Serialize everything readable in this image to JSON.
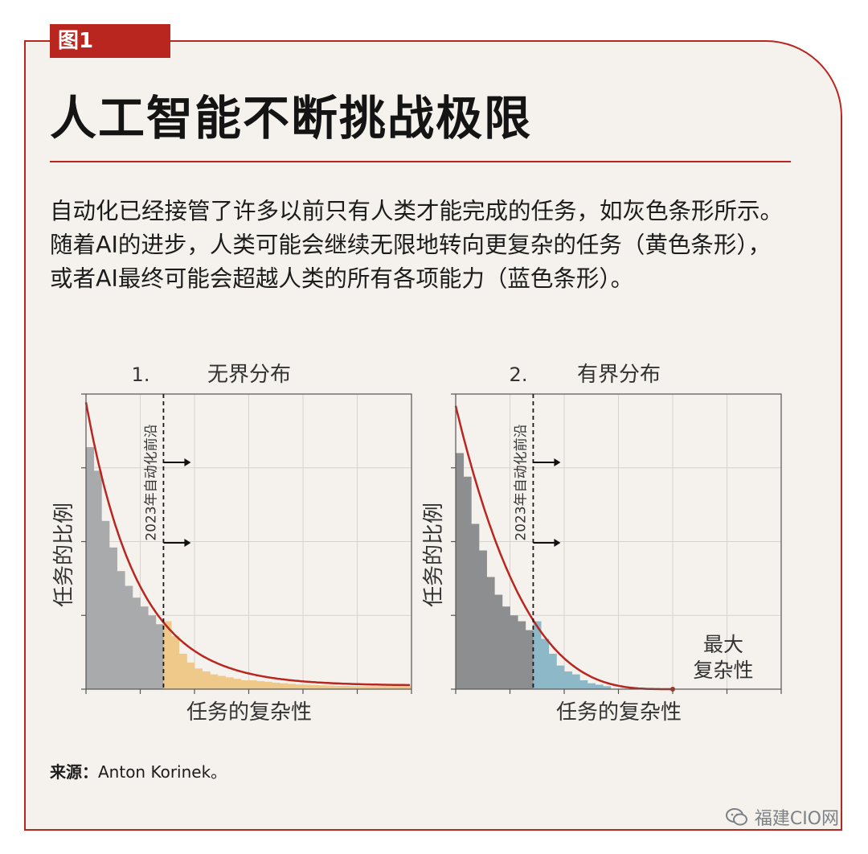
{
  "figure_tag": "图1",
  "title": "人工智能不断挑战极限",
  "description": "自动化已经接管了许多以前只有人类才能完成的任务，如灰色条形所示。随着AI的进步，人类可能会继续无限地转向更复杂的任务（黄色条形），或者AI最终可能会超越人类的所有各项能力（蓝色条形）。",
  "source_label": "来源：",
  "source_text": "Anton Korinek。",
  "watermark": "福建CIO网",
  "colors": {
    "accent": "#b8261f",
    "background": "#f5f1ec",
    "gray_bar": "#a8aaab",
    "gray_bar_dark": "#8c8e90",
    "yellow_bar": "#efc98a",
    "blue_bar": "#8cb8c8",
    "curve": "#b8261f"
  },
  "chart_data": [
    {
      "type": "bar",
      "panel_number": "1.",
      "title": "无界分布",
      "xlabel": "任务的复杂性",
      "ylabel": "任务的比例",
      "frontier_label": "2023年自动化前沿",
      "frontier_x": 5,
      "xlim": [
        0,
        21
      ],
      "ylim": [
        0,
        1
      ],
      "grid": true,
      "series": [
        {
          "color": "gray",
          "values": [
            0.82,
            0.74,
            0.57,
            0.48,
            0.4,
            0.35,
            0.31,
            0.28,
            0.25,
            0.22
          ]
        },
        {
          "color": "yellow",
          "values": [
            0.23,
            0.18,
            0.12,
            0.09,
            0.07,
            0.06,
            0.05,
            0.045,
            0.04,
            0.035,
            0.03,
            0.03,
            0.027,
            0.025,
            0.022,
            0.02,
            0.018,
            0.016,
            0.015,
            0.014,
            0.013,
            0.012,
            0.011,
            0.011,
            0.01,
            0.01,
            0.01,
            0.01,
            0.01,
            0.01,
            0.01,
            0.01
          ]
        }
      ],
      "curve": "exponential decay, unbounded"
    },
    {
      "type": "bar",
      "panel_number": "2.",
      "title": "有界分布",
      "xlabel": "任务的复杂性",
      "ylabel": "任务的比例",
      "frontier_label": "2023年自动化前沿",
      "frontier_x": 5,
      "max_label_line1": "最大",
      "max_label_line2": "复杂性",
      "xlim": [
        0,
        21
      ],
      "ylim": [
        0,
        1
      ],
      "grid": true,
      "series": [
        {
          "color": "gray",
          "values": [
            0.8,
            0.72,
            0.56,
            0.47,
            0.38,
            0.32,
            0.28,
            0.25,
            0.23,
            0.2
          ]
        },
        {
          "color": "blue",
          "values": [
            0.23,
            0.17,
            0.12,
            0.08,
            0.06,
            0.05,
            0.03,
            0.02,
            0.015,
            0.01
          ]
        }
      ],
      "curve": "decays to zero at max complexity"
    }
  ]
}
